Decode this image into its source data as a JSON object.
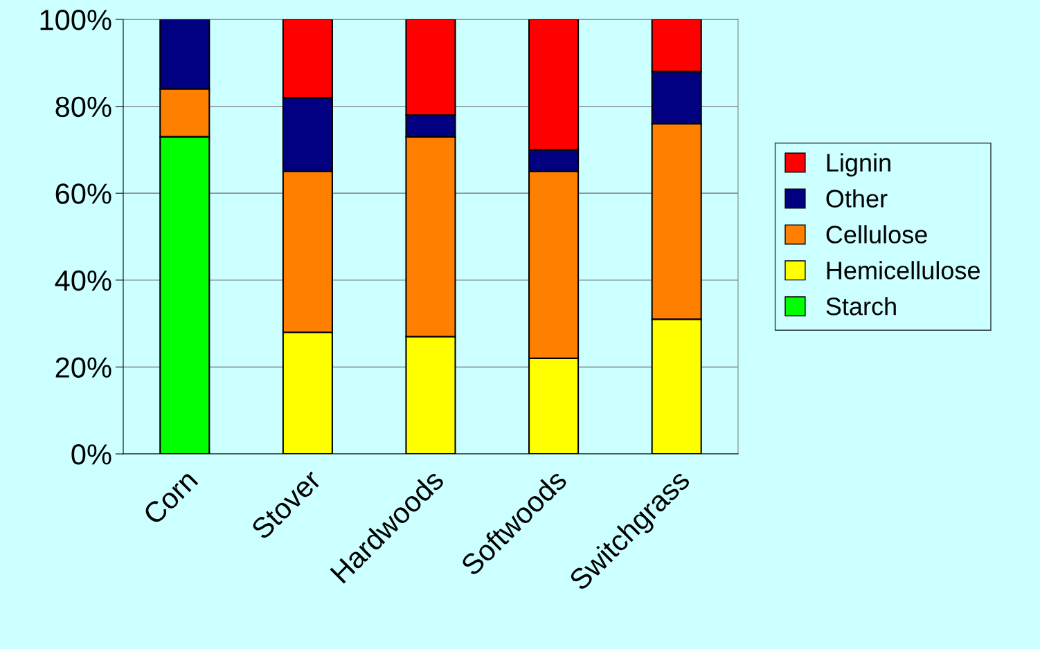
{
  "chart_data": {
    "type": "bar",
    "stacked": true,
    "categories": [
      "Corn",
      "Stover",
      "Hardwoods",
      "Softwoods",
      "Switchgrass"
    ],
    "series": [
      {
        "name": "Starch",
        "color": "#00ff00",
        "values": [
          73,
          null,
          null,
          null,
          null
        ]
      },
      {
        "name": "Hemicellulose",
        "color": "#ffff00",
        "values": [
          null,
          28,
          27,
          22,
          31
        ]
      },
      {
        "name": "Cellulose",
        "color": "#ff8000",
        "values": [
          11,
          37,
          46,
          43,
          45
        ]
      },
      {
        "name": "Other",
        "color": "#000080",
        "values": [
          16,
          17,
          5,
          5,
          12
        ]
      },
      {
        "name": "Lignin",
        "color": "#ff0000",
        "values": [
          null,
          18,
          22,
          30,
          12
        ]
      }
    ],
    "ylim": [
      0,
      100
    ],
    "yticks": [
      {
        "value": 0,
        "label": "0%"
      },
      {
        "value": 20,
        "label": "20%"
      },
      {
        "value": 40,
        "label": "40%"
      },
      {
        "value": 60,
        "label": "60%"
      },
      {
        "value": 80,
        "label": "80%"
      },
      {
        "value": 100,
        "label": "100%"
      }
    ],
    "grid": "y",
    "legend": "right"
  }
}
